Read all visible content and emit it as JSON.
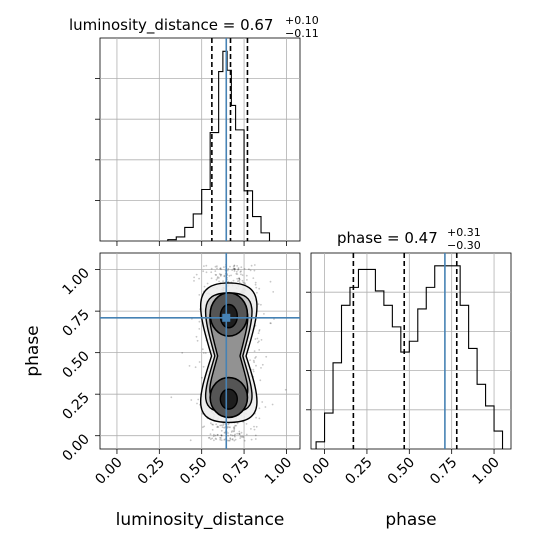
{
  "chart_data": {
    "type": "corner",
    "parameters": [
      "luminosity_distance",
      "phase"
    ],
    "titles": {
      "luminosity_distance": {
        "name": "luminosity_distance",
        "median": "0.67",
        "plus": "+0.10",
        "minus": "−0.11"
      },
      "phase": {
        "name": "phase",
        "median": "0.47",
        "plus": "+0.31",
        "minus": "−0.30"
      }
    },
    "axis_labels": {
      "x_left": "luminosity_distance",
      "x_right": "phase",
      "y_left": "phase"
    },
    "ticks": {
      "luminosity_distance": [
        "0.00",
        "0.25",
        "0.50",
        "0.75",
        "1.00"
      ],
      "phase": [
        "0.00",
        "0.25",
        "0.50",
        "0.75",
        "1.00"
      ]
    },
    "ranges": {
      "luminosity_distance": [
        -0.1,
        1.08
      ],
      "phase": [
        -0.08,
        1.1
      ]
    },
    "truths": {
      "luminosity_distance": 0.645,
      "phase": 0.71
    },
    "quantiles": {
      "luminosity_distance": [
        0.56,
        0.67,
        0.77
      ],
      "phase": [
        0.17,
        0.47,
        0.78
      ]
    },
    "hist_luminosity_distance": {
      "edges": [
        0.3,
        0.35,
        0.4,
        0.45,
        0.5,
        0.55,
        0.6,
        0.625,
        0.65,
        0.675,
        0.7,
        0.75,
        0.8,
        0.85,
        0.9
      ],
      "counts": [
        1,
        3,
        10,
        20,
        38,
        80,
        125,
        140,
        126,
        100,
        82,
        37,
        18,
        6
      ]
    },
    "hist_phase": {
      "edges": [
        -0.05,
        0.0,
        0.05,
        0.1,
        0.15,
        0.2,
        0.25,
        0.3,
        0.35,
        0.4,
        0.45,
        0.5,
        0.55,
        0.6,
        0.65,
        0.7,
        0.75,
        0.8,
        0.85,
        0.9,
        0.95,
        1.0,
        1.05
      ],
      "counts": [
        2,
        10,
        24,
        40,
        45,
        50,
        50,
        44,
        40,
        34,
        27,
        30,
        39,
        45,
        51,
        51,
        51,
        40,
        28,
        18,
        12,
        5
      ]
    },
    "grid": true
  }
}
